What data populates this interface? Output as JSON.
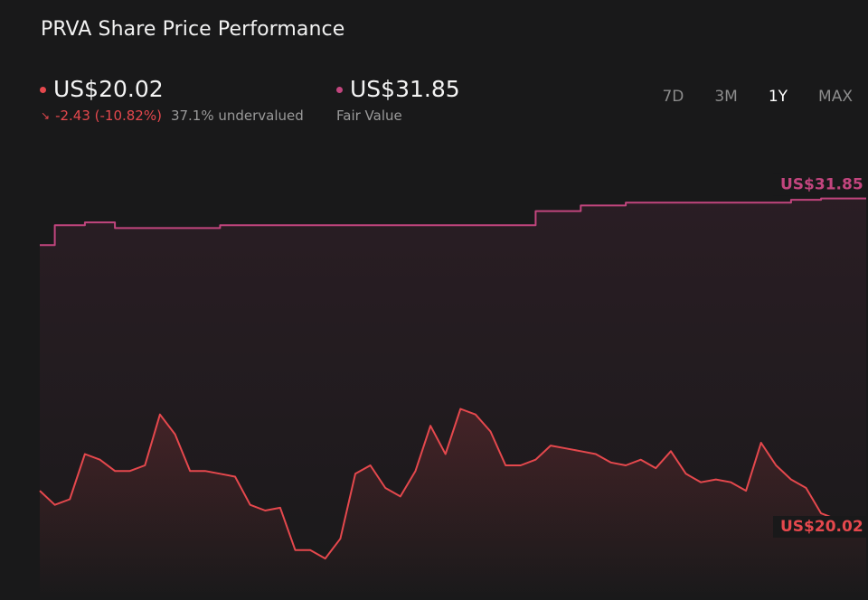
{
  "title": "PRVA Share Price Performance",
  "current": {
    "price": "US$20.02",
    "change": "-2.43 (-10.82%)",
    "valuation": "37.1% undervalued",
    "color": "#e5484d"
  },
  "fair_value": {
    "price": "US$31.85",
    "label": "Fair Value",
    "color": "#c2457e"
  },
  "tabs": [
    {
      "label": "7D",
      "active": false
    },
    {
      "label": "3M",
      "active": false
    },
    {
      "label": "1Y",
      "active": true
    },
    {
      "label": "MAX",
      "active": false
    }
  ],
  "icons": {
    "change_arrow": "arrow-down-right-icon"
  },
  "chart_data": {
    "type": "line",
    "x_range": "1Y",
    "series": [
      {
        "name": "Fair Value",
        "color": "#c2457e",
        "end_label": "US$31.85",
        "values": [
          30.2,
          30.9,
          30.9,
          31.0,
          31.0,
          30.8,
          30.8,
          30.8,
          30.8,
          30.8,
          30.8,
          30.8,
          30.9,
          30.9,
          30.9,
          30.9,
          30.9,
          30.9,
          30.9,
          30.9,
          30.9,
          30.9,
          30.9,
          30.9,
          30.9,
          30.9,
          30.9,
          30.9,
          30.9,
          30.9,
          30.9,
          30.9,
          30.9,
          31.4,
          31.4,
          31.4,
          31.6,
          31.6,
          31.6,
          31.7,
          31.7,
          31.7,
          31.7,
          31.7,
          31.7,
          31.7,
          31.7,
          31.7,
          31.7,
          31.7,
          31.8,
          31.8,
          31.85,
          31.85,
          31.85,
          31.85
        ]
      },
      {
        "name": "Share Price",
        "color": "#e5484d",
        "end_label": "US$20.02",
        "values": [
          21.5,
          21.0,
          21.2,
          22.8,
          22.6,
          22.2,
          22.2,
          22.4,
          24.2,
          23.5,
          22.2,
          22.2,
          22.1,
          22.0,
          21.0,
          20.8,
          20.9,
          19.4,
          19.4,
          19.1,
          19.8,
          22.1,
          22.4,
          21.6,
          21.3,
          22.2,
          23.8,
          22.8,
          24.4,
          24.2,
          23.6,
          22.4,
          22.4,
          22.6,
          23.1,
          23.0,
          22.9,
          22.8,
          22.5,
          22.4,
          22.6,
          22.3,
          22.9,
          22.1,
          21.8,
          21.9,
          21.8,
          21.5,
          23.2,
          22.4,
          21.9,
          21.6,
          20.7,
          20.5,
          20.2,
          20.02
        ]
      }
    ],
    "grid": false,
    "legend": "none"
  }
}
